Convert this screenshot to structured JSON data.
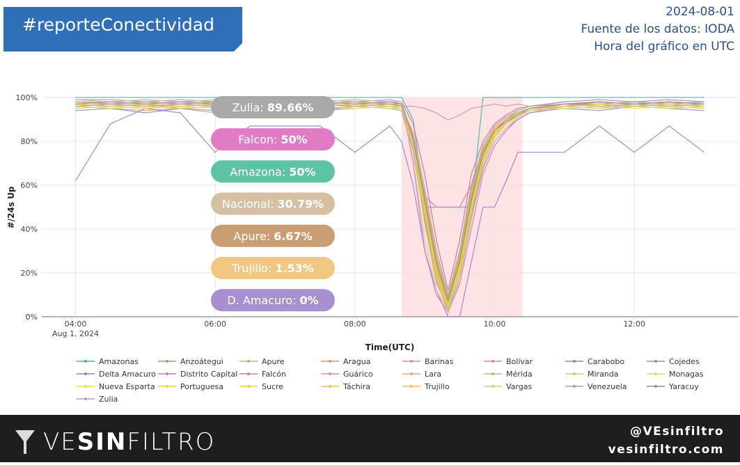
{
  "header": {
    "tag": "#reporteConectividad",
    "date": "2024-08-01",
    "source": "Fuente de los datos: IODA",
    "time_note": "Hora del gráfico en UTC"
  },
  "chart_data": {
    "type": "line",
    "y_label": "#/24s Up",
    "x_label": "Time(UTC)",
    "x_sublabel": "Aug 1, 2024",
    "xlim": [
      211,
      809
    ],
    "xticks": [
      {
        "value": 240,
        "label": "04:00"
      },
      {
        "value": 360,
        "label": "06:00"
      },
      {
        "value": 480,
        "label": "08:00"
      },
      {
        "value": 600,
        "label": "10:00"
      },
      {
        "value": 720,
        "label": "12:00"
      }
    ],
    "ylim": [
      0,
      100
    ],
    "yticks": [
      {
        "value": 0,
        "label": "0%"
      },
      {
        "value": 20,
        "label": "20%"
      },
      {
        "value": 40,
        "label": "40%"
      },
      {
        "value": 60,
        "label": "60%"
      },
      {
        "value": 80,
        "label": "80%"
      },
      {
        "value": 100,
        "label": "100%"
      }
    ],
    "grid": true,
    "highlight": {
      "from": 520,
      "to": 624,
      "color": "#fde3e3"
    },
    "x": [
      240,
      270,
      300,
      330,
      360,
      390,
      420,
      450,
      480,
      510,
      520,
      530,
      540,
      550,
      560,
      570,
      580,
      590,
      600,
      610,
      620,
      630,
      660,
      690,
      720,
      750,
      780
    ],
    "series": [
      {
        "name": "Amazonas",
        "color": "#3cb8a8",
        "values": [
          100,
          100,
          100,
          100,
          100,
          100,
          100,
          100,
          100,
          100,
          100,
          90,
          50,
          50,
          50,
          50,
          50,
          100,
          100,
          100,
          100,
          100,
          100,
          100,
          100,
          100,
          100
        ]
      },
      {
        "name": "Anzoátegui",
        "color": "#7fb36b",
        "values": [
          98,
          97,
          98,
          97,
          98,
          98,
          97,
          98,
          97,
          98,
          97,
          80,
          50,
          20,
          5,
          25,
          55,
          75,
          85,
          90,
          93,
          95,
          97,
          97,
          98,
          97,
          98
        ]
      },
      {
        "name": "Apure",
        "color": "#d4a373",
        "values": [
          96,
          95,
          94,
          95,
          93,
          94,
          95,
          94,
          95,
          96,
          95,
          78,
          45,
          20,
          6.67,
          20,
          45,
          70,
          82,
          88,
          92,
          94,
          96,
          95,
          96,
          95,
          96
        ]
      },
      {
        "name": "Aragua",
        "color": "#f08a6c",
        "values": [
          97,
          96,
          95,
          96,
          97,
          95,
          96,
          97,
          96,
          97,
          96,
          82,
          55,
          25,
          8,
          28,
          58,
          76,
          86,
          90,
          93,
          95,
          96,
          97,
          96,
          97,
          96
        ]
      },
      {
        "name": "Barinas",
        "color": "#f0887a",
        "values": [
          95,
          96,
          97,
          95,
          96,
          97,
          95,
          96,
          97,
          96,
          95,
          79,
          48,
          18,
          4,
          22,
          50,
          72,
          84,
          89,
          92,
          94,
          96,
          95,
          97,
          96,
          95
        ]
      },
      {
        "name": "Bolívar",
        "color": "#e8857e",
        "values": [
          98,
          97,
          96,
          97,
          98,
          97,
          96,
          97,
          98,
          97,
          96,
          84,
          58,
          30,
          10,
          30,
          60,
          78,
          87,
          91,
          94,
          96,
          97,
          98,
          97,
          98,
          97
        ]
      },
      {
        "name": "Carabobo",
        "color": "#b07aa8",
        "values": [
          99,
          98,
          99,
          98,
          99,
          98,
          99,
          98,
          99,
          98,
          98,
          88,
          65,
          35,
          12,
          35,
          65,
          80,
          88,
          92,
          95,
          96,
          98,
          99,
          98,
          99,
          98
        ]
      },
      {
        "name": "Cojedes",
        "color": "#8a8ad4",
        "values": [
          94,
          95,
          93,
          95,
          94,
          96,
          95,
          94,
          96,
          95,
          94,
          76,
          44,
          16,
          3,
          18,
          46,
          68,
          80,
          86,
          90,
          93,
          95,
          94,
          96,
          95,
          94
        ]
      },
      {
        "name": "Delta Amacuro",
        "color": "#9a7fd0",
        "values": [
          62,
          88,
          95,
          93,
          75,
          87,
          87,
          87,
          75,
          87,
          80,
          60,
          30,
          12,
          0,
          0,
          25,
          50,
          50,
          62,
          75,
          75,
          75,
          87,
          75,
          87,
          75
        ]
      },
      {
        "name": "Distrito Capital",
        "color": "#c879d8",
        "values": [
          99,
          99,
          98,
          99,
          98,
          99,
          98,
          99,
          98,
          99,
          98,
          70,
          30,
          10,
          2,
          15,
          40,
          65,
          78,
          85,
          90,
          93,
          96,
          98,
          97,
          98,
          97
        ]
      },
      {
        "name": "Falcón",
        "color": "#e070c0",
        "values": [
          97,
          96,
          97,
          96,
          97,
          96,
          97,
          96,
          97,
          96,
          96,
          80,
          55,
          50,
          50,
          50,
          60,
          75,
          85,
          90,
          93,
          95,
          97,
          96,
          97,
          96,
          97
        ]
      },
      {
        "name": "Guárico",
        "color": "#d88aa8",
        "values": [
          96,
          97,
          96,
          95,
          96,
          97,
          96,
          95,
          96,
          97,
          96,
          81,
          52,
          22,
          7,
          24,
          52,
          74,
          85,
          89,
          92,
          94,
          96,
          97,
          96,
          97,
          96
        ]
      },
      {
        "name": "Lara",
        "color": "#f0a070",
        "values": [
          97,
          96,
          95,
          96,
          97,
          96,
          95,
          96,
          97,
          96,
          95,
          80,
          50,
          22,
          6,
          26,
          54,
          73,
          84,
          89,
          92,
          95,
          96,
          97,
          96,
          97,
          96
        ]
      },
      {
        "name": "Mérida",
        "color": "#a8c860",
        "values": [
          98,
          97,
          98,
          97,
          98,
          97,
          98,
          97,
          98,
          97,
          97,
          83,
          57,
          28,
          9,
          29,
          57,
          77,
          86,
          90,
          94,
          96,
          97,
          98,
          97,
          98,
          97
        ]
      },
      {
        "name": "Miranda",
        "color": "#b8d860",
        "values": [
          98,
          98,
          97,
          98,
          97,
          98,
          97,
          98,
          97,
          98,
          97,
          78,
          42,
          15,
          4,
          20,
          48,
          70,
          83,
          89,
          93,
          95,
          97,
          98,
          97,
          98,
          97
        ]
      },
      {
        "name": "Monagas",
        "color": "#d8e040",
        "values": [
          96,
          95,
          96,
          95,
          96,
          95,
          96,
          95,
          96,
          95,
          95,
          79,
          49,
          19,
          5,
          21,
          49,
          71,
          83,
          88,
          91,
          94,
          96,
          95,
          96,
          95,
          96
        ]
      },
      {
        "name": "Nueva Esparta",
        "color": "#e8e040",
        "values": [
          95,
          96,
          95,
          96,
          95,
          96,
          95,
          96,
          95,
          96,
          95,
          81,
          53,
          24,
          7,
          23,
          51,
          73,
          84,
          88,
          91,
          94,
          95,
          96,
          95,
          96,
          95
        ]
      },
      {
        "name": "Portuguesa",
        "color": "#f0d040",
        "values": [
          97,
          96,
          97,
          96,
          97,
          96,
          97,
          96,
          97,
          96,
          96,
          82,
          54,
          23,
          6,
          24,
          53,
          74,
          85,
          89,
          92,
          95,
          97,
          96,
          97,
          96,
          97
        ]
      },
      {
        "name": "Sucre",
        "color": "#f8c840",
        "values": [
          96,
          97,
          96,
          97,
          96,
          97,
          96,
          97,
          96,
          97,
          96,
          80,
          51,
          21,
          5,
          22,
          50,
          72,
          84,
          89,
          92,
          94,
          96,
          97,
          96,
          97,
          96
        ]
      },
      {
        "name": "Táchira",
        "color": "#f0c060",
        "values": [
          98,
          97,
          98,
          97,
          98,
          97,
          98,
          97,
          98,
          97,
          97,
          83,
          56,
          27,
          8,
          27,
          55,
          75,
          86,
          90,
          93,
          95,
          97,
          98,
          97,
          98,
          97
        ]
      },
      {
        "name": "Trujillo",
        "color": "#f0b870",
        "values": [
          97,
          96,
          97,
          96,
          97,
          96,
          97,
          96,
          97,
          96,
          96,
          78,
          46,
          17,
          1.53,
          18,
          47,
          70,
          82,
          88,
          92,
          94,
          96,
          97,
          96,
          97,
          96
        ]
      },
      {
        "name": "Vargas",
        "color": "#d8c880",
        "values": [
          99,
          98,
          99,
          98,
          99,
          98,
          99,
          98,
          99,
          98,
          98,
          72,
          35,
          12,
          3,
          16,
          44,
          67,
          80,
          86,
          91,
          94,
          97,
          98,
          97,
          98,
          97
        ]
      },
      {
        "name": "Venezuela",
        "color": "#a0a890",
        "values": [
          98,
          97,
          98,
          97,
          98,
          97,
          98,
          97,
          98,
          97,
          97,
          82,
          55,
          26,
          8,
          26,
          55,
          75,
          85,
          90,
          93,
          95,
          97,
          98,
          97,
          98,
          97
        ]
      },
      {
        "name": "Yaracuy",
        "color": "#909090",
        "values": [
          97,
          98,
          97,
          98,
          97,
          98,
          97,
          98,
          97,
          98,
          97,
          81,
          53,
          24,
          7,
          25,
          53,
          74,
          85,
          89,
          92,
          95,
          97,
          98,
          97,
          98,
          97
        ]
      },
      {
        "name": "Zulia",
        "color": "#b0a0b8",
        "values": [
          96,
          97,
          96,
          97,
          96,
          97,
          96,
          97,
          96,
          97,
          96,
          96,
          95,
          93,
          89.66,
          92,
          95,
          96,
          97,
          96,
          97,
          96,
          97,
          96,
          97,
          96,
          97
        ]
      }
    ],
    "annotations": [
      {
        "label": "Zulia:",
        "value": "89.66%",
        "color": "#a9a9a9"
      },
      {
        "label": "Falcon:",
        "value": "50%",
        "color": "#e07cc4"
      },
      {
        "label": "Amazona:",
        "value": "50%",
        "color": "#5cc4a4"
      },
      {
        "label": "Nacional:",
        "value": "30.79%",
        "color": "#d6c0a4"
      },
      {
        "label": "Apure:",
        "value": "6.67%",
        "color": "#c89e72"
      },
      {
        "label": "Trujillo:",
        "value": "1.53%",
        "color": "#f0c882"
      },
      {
        "label": "D. Amacuro:",
        "value": "0%",
        "color": "#a890d0"
      }
    ]
  },
  "footer": {
    "brand": [
      "VE",
      "SIN",
      "FILTRO"
    ],
    "handle": "@VEsinfiltro",
    "site": "vesinfiltro.com"
  }
}
